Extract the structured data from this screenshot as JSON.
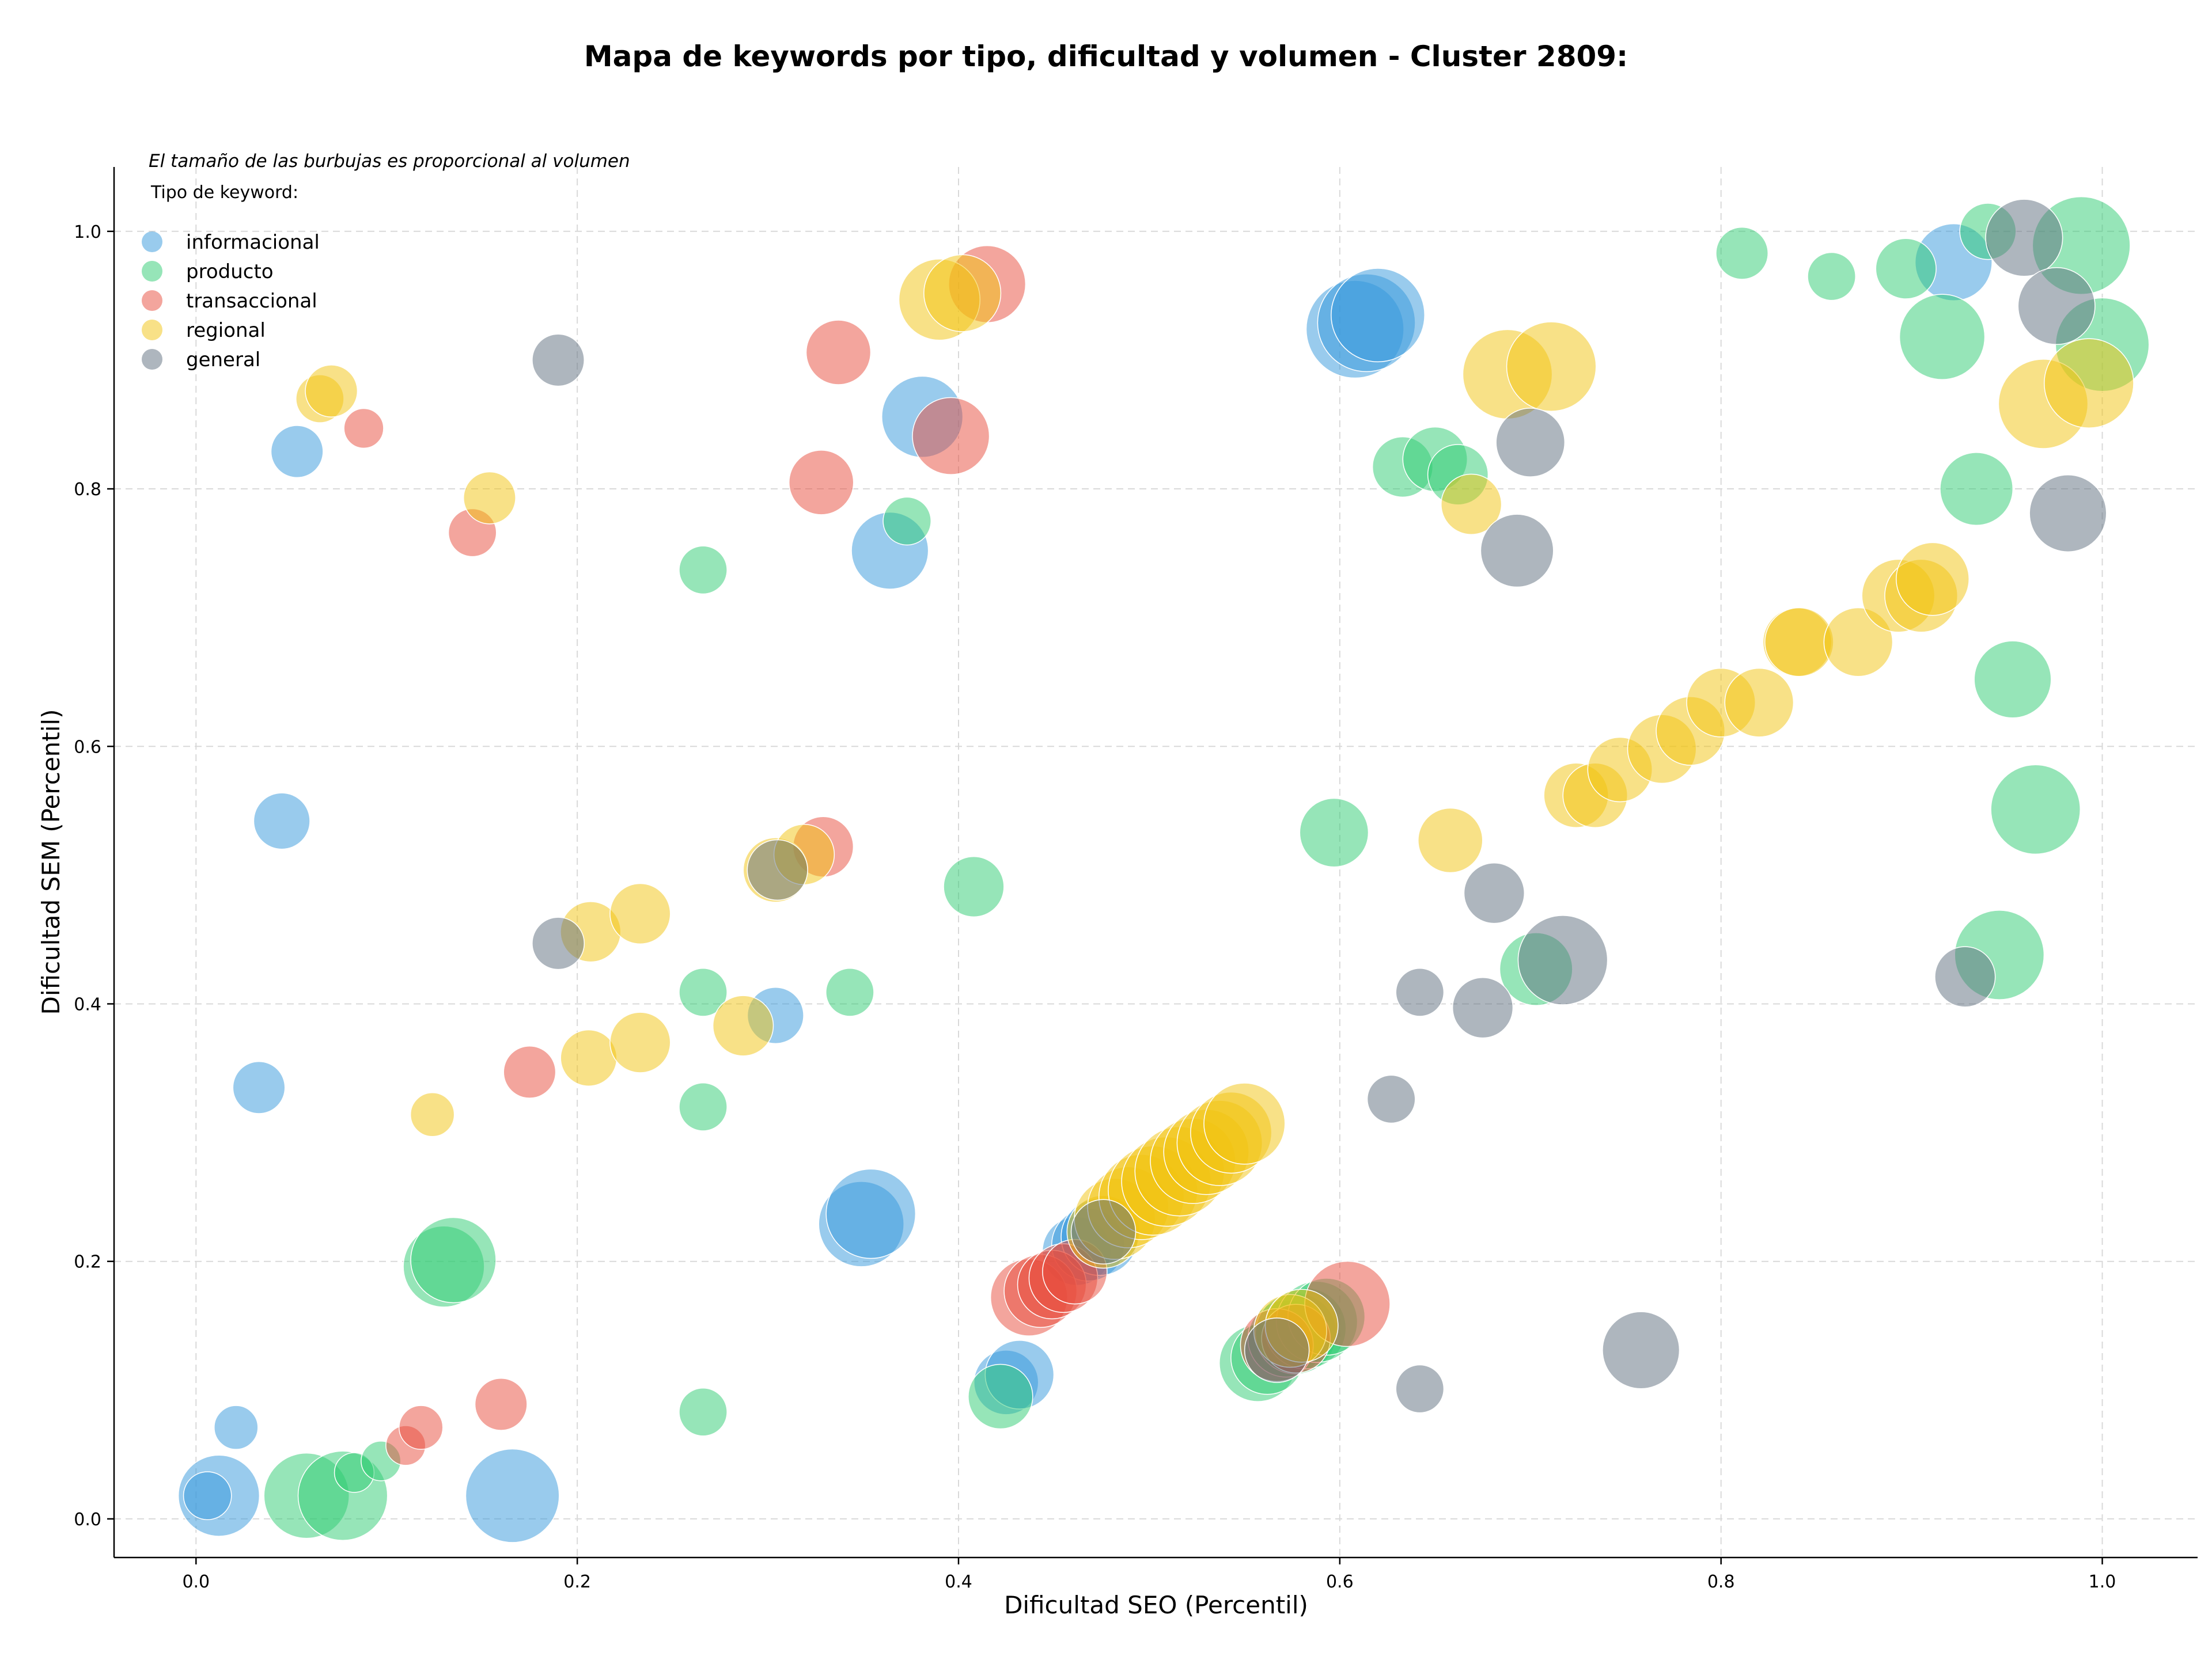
{
  "chart_data": {
    "type": "scatter",
    "title": "Mapa de keywords por tipo, dificultad y volumen - Cluster 2809:",
    "xlabel": "Dificultad SEO (Percentil)",
    "ylabel": "Dificultad SEM (Percentil)",
    "xlim": [
      -0.043,
      1.05
    ],
    "ylim": [
      -0.03,
      1.05
    ],
    "xticks": [
      "0.0",
      "0.2",
      "0.4",
      "0.6",
      "0.8",
      "1.0"
    ],
    "yticks": [
      "0.0",
      "0.2",
      "0.4",
      "0.6",
      "0.8",
      "1.0"
    ],
    "grid": true,
    "note": "El tamaño de las burbujas es proporcional al volumen",
    "legend_title": "Tipo de keyword:",
    "legend_position": "top-left",
    "series": [
      {
        "name": "informacional",
        "color": "#3498db",
        "points": [
          [
            0.012,
            0.018,
            0.7
          ],
          [
            0.006,
            0.018,
            0.3
          ],
          [
            0.021,
            0.071,
            0.25
          ],
          [
            0.033,
            0.335,
            0.35
          ],
          [
            0.045,
            0.542,
            0.4
          ],
          [
            0.053,
            0.829,
            0.35
          ],
          [
            0.166,
            0.018,
            0.85
          ],
          [
            0.304,
            0.391,
            0.4
          ],
          [
            0.349,
            0.229,
            0.75
          ],
          [
            0.354,
            0.237,
            0.8
          ],
          [
            0.364,
            0.752,
            0.65
          ],
          [
            0.381,
            0.856,
            0.7
          ],
          [
            0.425,
            0.106,
            0.5
          ],
          [
            0.432,
            0.112,
            0.55
          ],
          [
            0.462,
            0.208,
            0.55
          ],
          [
            0.468,
            0.213,
            0.6
          ],
          [
            0.474,
            0.219,
            0.65
          ],
          [
            0.608,
            0.924,
            0.9
          ],
          [
            0.614,
            0.929,
            0.9
          ],
          [
            0.62,
            0.935,
            0.85
          ],
          [
            0.922,
            0.976,
            0.65
          ]
        ]
      },
      {
        "name": "producto",
        "color": "#2ecc71",
        "points": [
          [
            0.058,
            0.018,
            0.75
          ],
          [
            0.077,
            0.018,
            0.8
          ],
          [
            0.083,
            0.036,
            0.2
          ],
          [
            0.097,
            0.045,
            0.2
          ],
          [
            0.13,
            0.196,
            0.7
          ],
          [
            0.135,
            0.201,
            0.75
          ],
          [
            0.266,
            0.737,
            0.3
          ],
          [
            0.266,
            0.409,
            0.3
          ],
          [
            0.266,
            0.32,
            0.3
          ],
          [
            0.266,
            0.083,
            0.3
          ],
          [
            0.343,
            0.409,
            0.3
          ],
          [
            0.373,
            0.775,
            0.3
          ],
          [
            0.408,
            0.491,
            0.45
          ],
          [
            0.422,
            0.095,
            0.5
          ],
          [
            0.557,
            0.121,
            0.65
          ],
          [
            0.562,
            0.125,
            0.6
          ],
          [
            0.572,
            0.14,
            0.65
          ],
          [
            0.577,
            0.144,
            0.7
          ],
          [
            0.582,
            0.148,
            0.7
          ],
          [
            0.588,
            0.153,
            0.7
          ],
          [
            0.593,
            0.157,
            0.65
          ],
          [
            0.597,
            0.533,
            0.55
          ],
          [
            0.633,
            0.817,
            0.45
          ],
          [
            0.65,
            0.823,
            0.5
          ],
          [
            0.662,
            0.811,
            0.45
          ],
          [
            0.703,
            0.427,
            0.6
          ],
          [
            0.811,
            0.983,
            0.35
          ],
          [
            0.858,
            0.965,
            0.3
          ],
          [
            0.897,
            0.971,
            0.45
          ],
          [
            0.916,
            0.918,
            0.75
          ],
          [
            0.934,
            0.8,
            0.6
          ],
          [
            0.94,
            1.0,
            0.4
          ],
          [
            0.946,
            0.438,
            0.8
          ],
          [
            0.953,
            0.652,
            0.65
          ],
          [
            0.965,
            0.551,
            0.8
          ],
          [
            0.989,
            0.989,
            0.9
          ],
          [
            1.0,
            0.912,
            0.85
          ]
        ]
      },
      {
        "name": "transaccional",
        "color": "#e74c3c",
        "points": [
          [
            0.088,
            0.847,
            0.2
          ],
          [
            0.11,
            0.057,
            0.2
          ],
          [
            0.118,
            0.071,
            0.25
          ],
          [
            0.145,
            0.766,
            0.3
          ],
          [
            0.16,
            0.089,
            0.35
          ],
          [
            0.175,
            0.347,
            0.35
          ],
          [
            0.328,
            0.805,
            0.5
          ],
          [
            0.329,
            0.522,
            0.45
          ],
          [
            0.337,
            0.906,
            0.5
          ],
          [
            0.396,
            0.841,
            0.65
          ],
          [
            0.415,
            0.959,
            0.65
          ],
          [
            0.437,
            0.172,
            0.65
          ],
          [
            0.443,
            0.177,
            0.6
          ],
          [
            0.449,
            0.182,
            0.55
          ],
          [
            0.455,
            0.187,
            0.55
          ],
          [
            0.461,
            0.192,
            0.5
          ],
          [
            0.567,
            0.135,
            0.6
          ],
          [
            0.577,
            0.14,
            0.55
          ],
          [
            0.604,
            0.167,
            0.75
          ]
        ]
      },
      {
        "name": "regional",
        "color": "#f1c40f",
        "points": [
          [
            0.065,
            0.87,
            0.3
          ],
          [
            0.071,
            0.876,
            0.35
          ],
          [
            0.124,
            0.314,
            0.25
          ],
          [
            0.154,
            0.793,
            0.35
          ],
          [
            0.206,
            0.358,
            0.4
          ],
          [
            0.207,
            0.456,
            0.45
          ],
          [
            0.233,
            0.47,
            0.45
          ],
          [
            0.233,
            0.37,
            0.45
          ],
          [
            0.287,
            0.383,
            0.45
          ],
          [
            0.304,
            0.504,
            0.5
          ],
          [
            0.319,
            0.516,
            0.45
          ],
          [
            0.39,
            0.947,
            0.7
          ],
          [
            0.402,
            0.952,
            0.65
          ],
          [
            0.476,
            0.223,
            0.6
          ],
          [
            0.482,
            0.233,
            0.7
          ],
          [
            0.489,
            0.242,
            0.7
          ],
          [
            0.496,
            0.25,
            0.75
          ],
          [
            0.502,
            0.255,
            0.8
          ],
          [
            0.509,
            0.262,
            0.8
          ],
          [
            0.516,
            0.27,
            0.8
          ],
          [
            0.523,
            0.278,
            0.75
          ],
          [
            0.53,
            0.285,
            0.75
          ],
          [
            0.537,
            0.292,
            0.75
          ],
          [
            0.543,
            0.3,
            0.7
          ],
          [
            0.55,
            0.307,
            0.7
          ],
          [
            0.574,
            0.146,
            0.6
          ],
          [
            0.58,
            0.15,
            0.6
          ],
          [
            0.658,
            0.527,
            0.5
          ],
          [
            0.669,
            0.788,
            0.45
          ],
          [
            0.688,
            0.889,
            0.8
          ],
          [
            0.711,
            0.895,
            0.8
          ],
          [
            0.724,
            0.562,
            0.5
          ],
          [
            0.734,
            0.562,
            0.5
          ],
          [
            0.747,
            0.582,
            0.5
          ],
          [
            0.769,
            0.598,
            0.55
          ],
          [
            0.784,
            0.612,
            0.55
          ],
          [
            0.8,
            0.634,
            0.55
          ],
          [
            0.82,
            0.634,
            0.55
          ],
          [
            0.84,
            0.681,
            0.55
          ],
          [
            0.841,
            0.681,
            0.55
          ],
          [
            0.872,
            0.681,
            0.55
          ],
          [
            0.893,
            0.717,
            0.6
          ],
          [
            0.905,
            0.717,
            0.6
          ],
          [
            0.911,
            0.73,
            0.6
          ],
          [
            0.969,
            0.866,
            0.8
          ],
          [
            0.993,
            0.882,
            0.8
          ]
        ]
      },
      {
        "name": "general",
        "color": "#5d6d7e",
        "points": [
          [
            0.19,
            0.9,
            0.35
          ],
          [
            0.19,
            0.447,
            0.35
          ],
          [
            0.305,
            0.504,
            0.45
          ],
          [
            0.476,
            0.223,
            0.5
          ],
          [
            0.567,
            0.131,
            0.5
          ],
          [
            0.627,
            0.326,
            0.3
          ],
          [
            0.642,
            0.101,
            0.3
          ],
          [
            0.642,
            0.409,
            0.3
          ],
          [
            0.675,
            0.397,
            0.45
          ],
          [
            0.681,
            0.486,
            0.45
          ],
          [
            0.693,
            0.752,
            0.6
          ],
          [
            0.7,
            0.836,
            0.55
          ],
          [
            0.717,
            0.434,
            0.8
          ],
          [
            0.758,
            0.131,
            0.65
          ],
          [
            0.928,
            0.421,
            0.45
          ],
          [
            0.959,
            0.995,
            0.65
          ],
          [
            0.976,
            0.942,
            0.65
          ],
          [
            0.982,
            0.781,
            0.65
          ]
        ]
      }
    ]
  }
}
